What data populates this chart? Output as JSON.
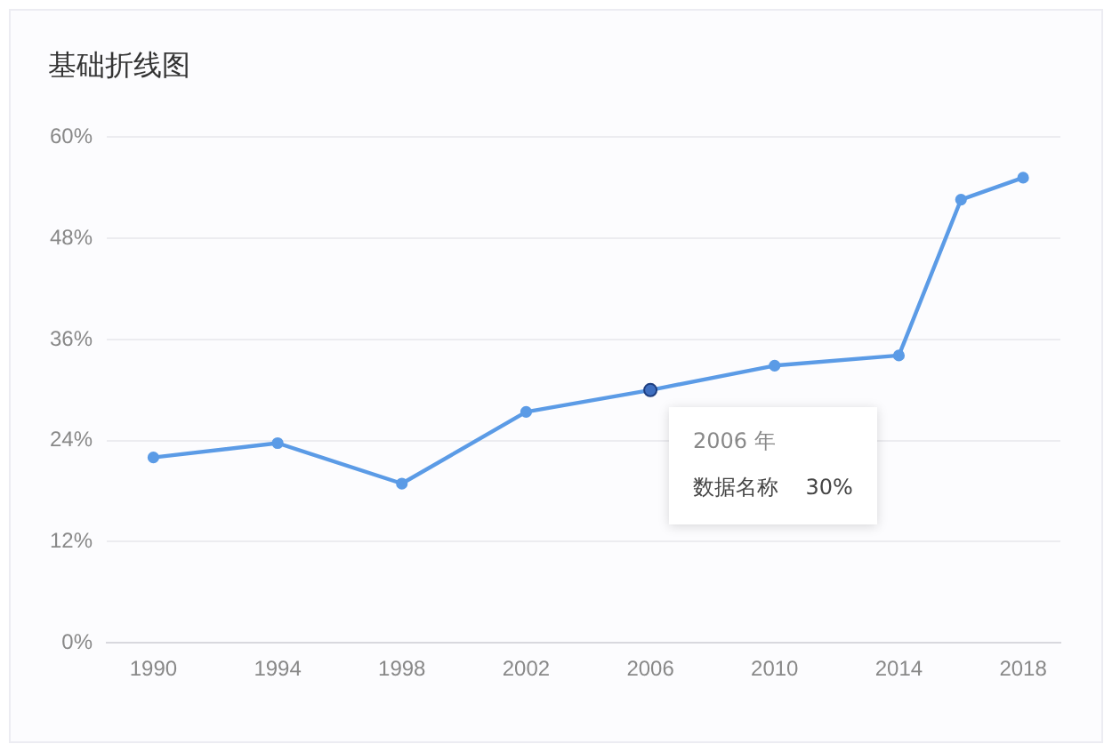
{
  "chart_data": {
    "type": "line",
    "title": "基础折线图",
    "x": [
      1990,
      1994,
      1998,
      2002,
      2006,
      2010,
      2014,
      2016,
      2018
    ],
    "series": [
      {
        "color": "#5b9be6",
        "values": [
          22,
          23.7,
          18.9,
          27.4,
          30,
          32.9,
          34.1,
          52.6,
          55.2
        ]
      }
    ],
    "xlim": [
      1988.5,
      2019.2
    ],
    "xticks": [
      1990,
      1994,
      1998,
      2002,
      2006,
      2010,
      2014,
      2018
    ],
    "ylim": [
      0,
      60
    ],
    "yticks": [
      {
        "value": 0,
        "label": "0%"
      },
      {
        "value": 12,
        "label": "12%"
      },
      {
        "value": 24,
        "label": "24%"
      },
      {
        "value": 36,
        "label": "36%"
      },
      {
        "value": 48,
        "label": "48%"
      },
      {
        "value": 60,
        "label": "60%"
      }
    ],
    "grid": "y",
    "legend": false,
    "marker": "circle",
    "line_style": "solid",
    "annotations": [
      {
        "text": "2006 年",
        "x": 2006,
        "y": 30
      },
      "数据名称    30%"
    ]
  }
}
